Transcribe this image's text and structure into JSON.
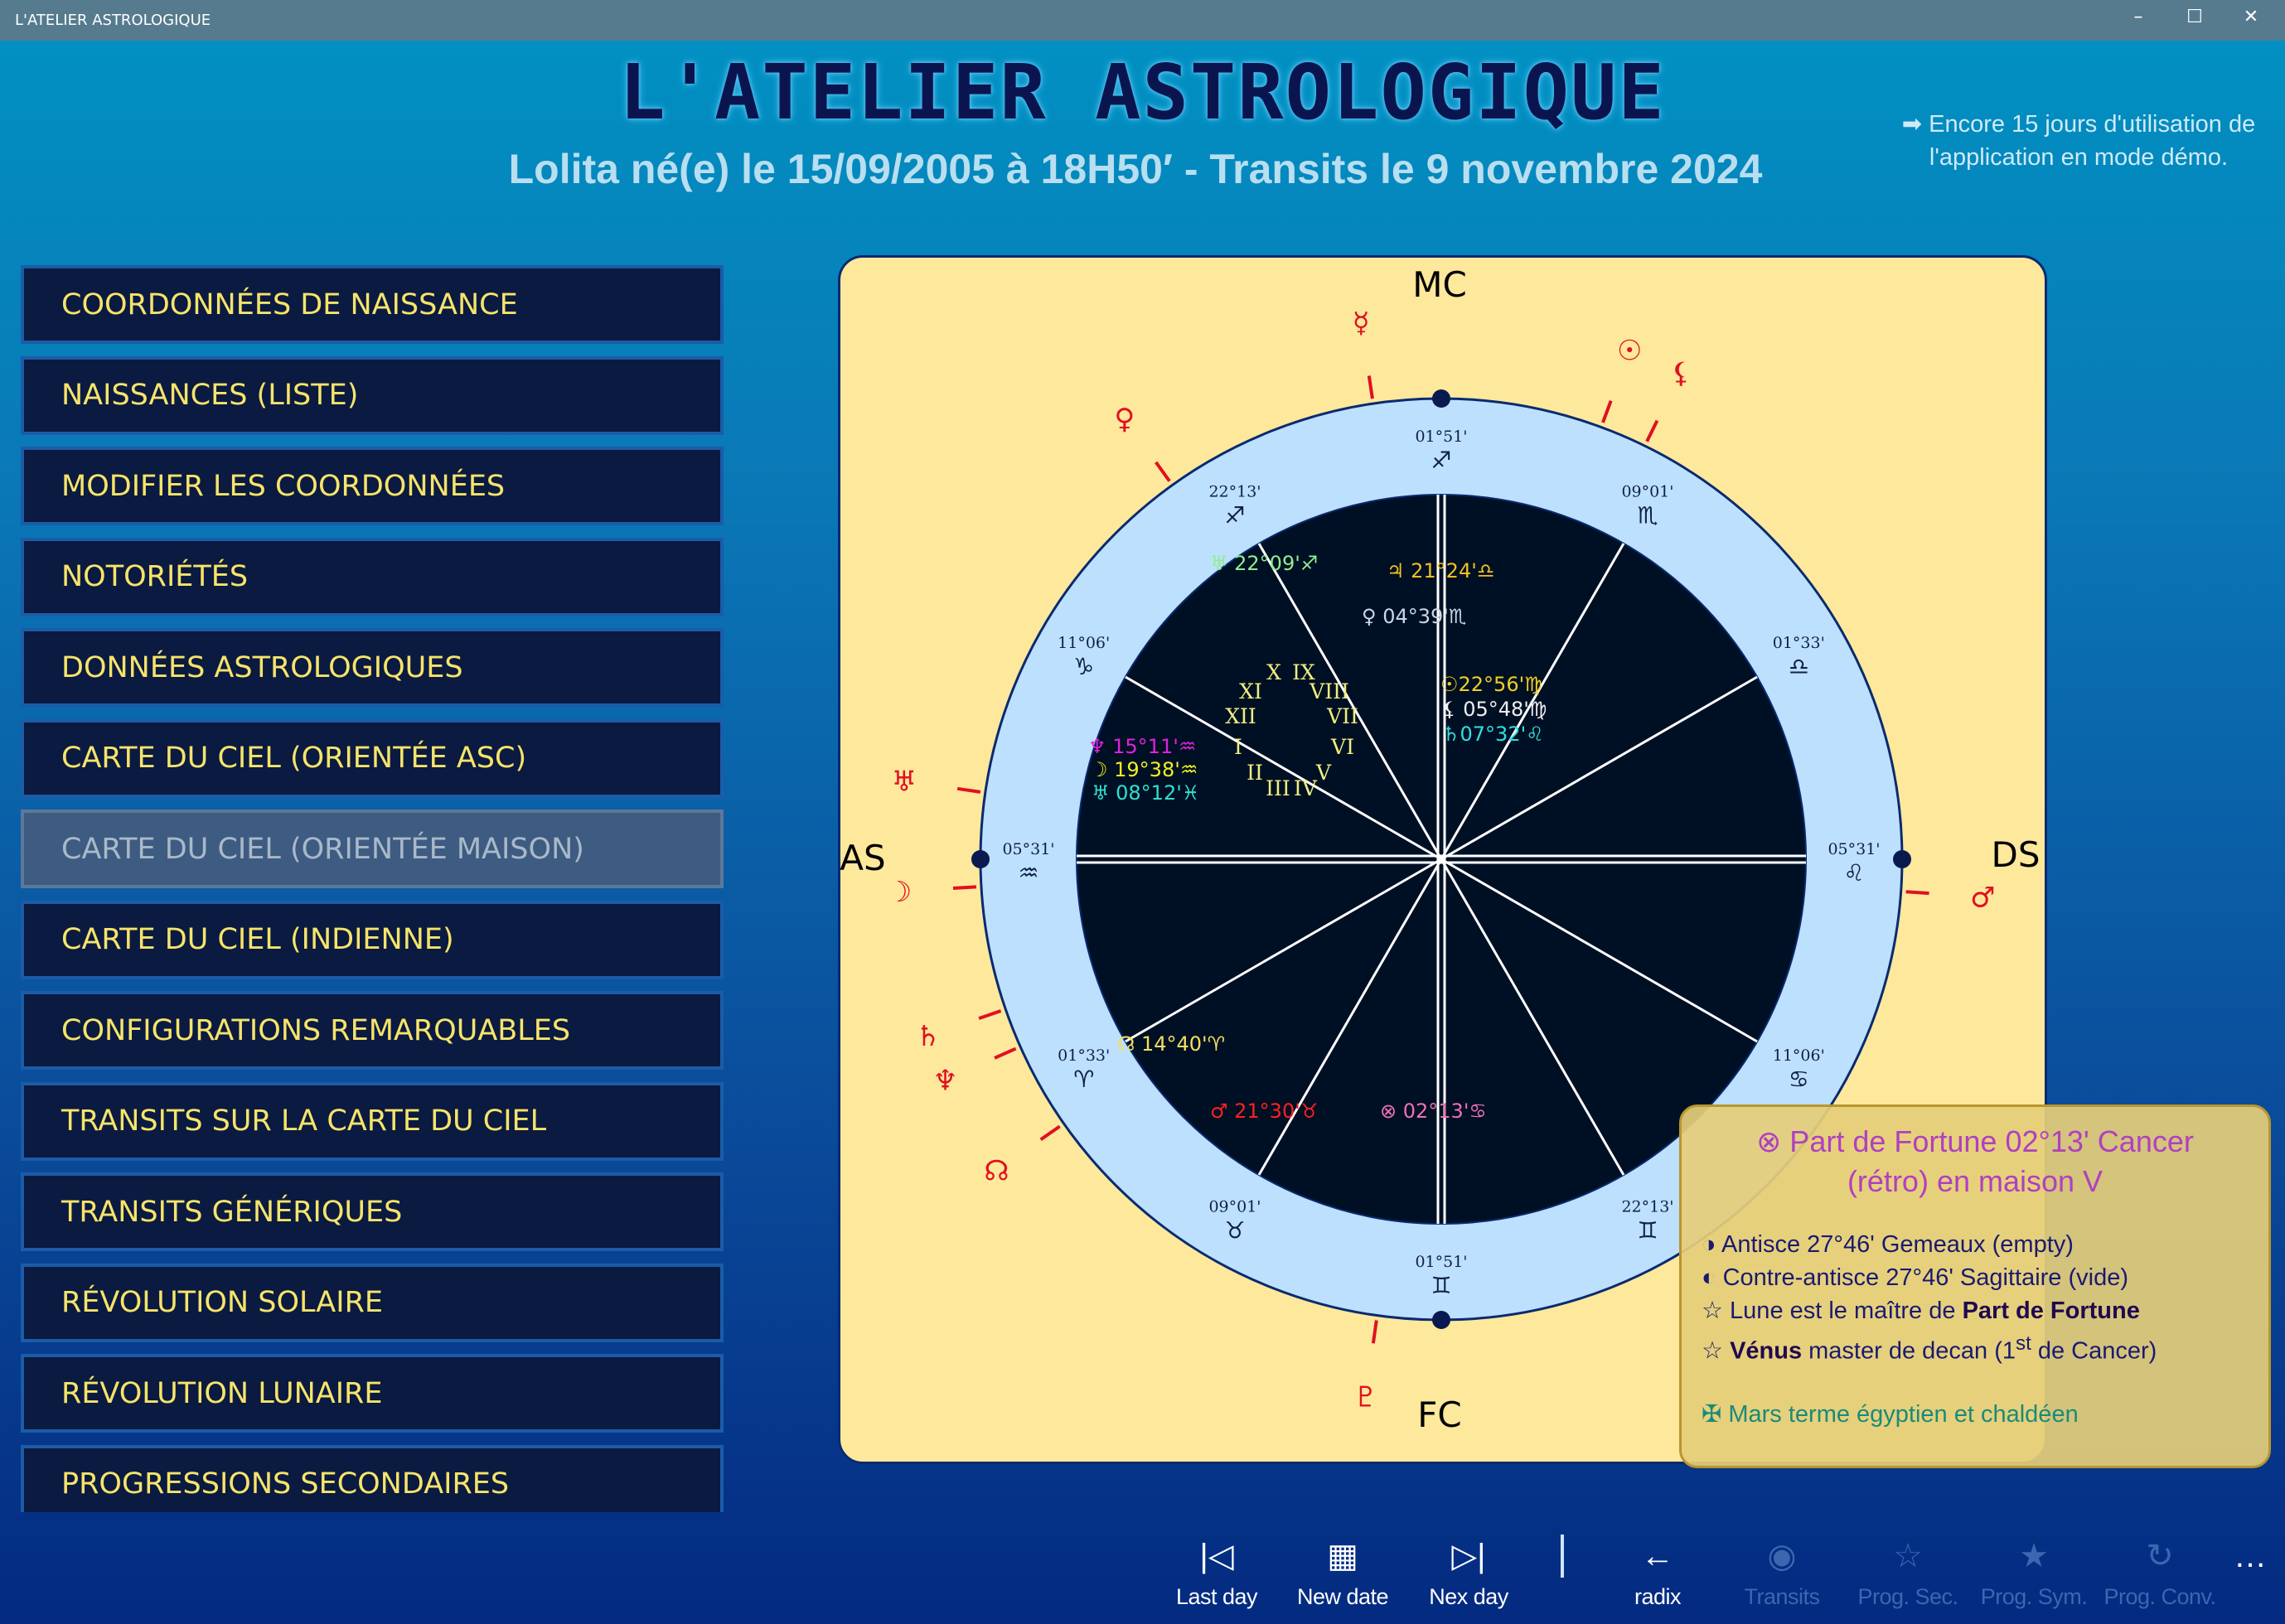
{
  "window": {
    "title": "L'ATELIER ASTROLOGIQUE",
    "minimize": "–",
    "maximize": "☐",
    "close": "✕"
  },
  "header": {
    "title": "L'ATELIER  ASTROLOGIQUE",
    "subtitle": "Lolita né(e) le 15/09/2005 à 18H50′ - Transits le 9 novembre 2024",
    "demo_note": "➡ Encore 15 jours d'utilisation de l'application en mode démo."
  },
  "menu": {
    "items": [
      {
        "label": "COORDONNÉES DE NAISSANCE"
      },
      {
        "label": "NAISSANCES (LISTE)"
      },
      {
        "label": "MODIFIER LES COORDONNÉES"
      },
      {
        "label": "NOTORIÉTÉS"
      },
      {
        "label": "DONNÉES ASTROLOGIQUES"
      },
      {
        "label": "CARTE DU CIEL (ORIENTÉE ASC)"
      },
      {
        "label": "CARTE DU CIEL (ORIENTÉE MAISON)",
        "selected": true
      },
      {
        "label": "CARTE DU CIEL (INDIENNE)"
      },
      {
        "label": "CONFIGURATIONS REMARQUABLES"
      },
      {
        "label": "TRANSITS SUR LA CARTE DU CIEL"
      },
      {
        "label": "TRANSITS GÉNÉRIQUES"
      },
      {
        "label": "RÉVOLUTION SOLAIRE"
      },
      {
        "label": "RÉVOLUTION LUNAIRE"
      },
      {
        "label": "PROGRESSIONS SECONDAIRES"
      }
    ]
  },
  "chart": {
    "angles": {
      "mc": "MC",
      "fc": "FC",
      "as": "AS",
      "ds": "DS"
    },
    "colors": {
      "panel": "#fde89c",
      "ring": "#bde0ff",
      "inner": "#001024",
      "ticks": "#e01020",
      "houses": "#f0ee80"
    },
    "cusps": [
      {
        "deg": "05°31'",
        "sign": "♒"
      },
      {
        "deg": "11°06'",
        "sign": "♑"
      },
      {
        "deg": "22°13'",
        "sign": "♐"
      },
      {
        "deg": "01°51'",
        "sign": "♐"
      },
      {
        "deg": "09°01'",
        "sign": "♏"
      },
      {
        "deg": "01°33'",
        "sign": "♎"
      },
      {
        "deg": "05°31'",
        "sign": "♌"
      },
      {
        "deg": "11°06'",
        "sign": "♋"
      },
      {
        "deg": "22°13'",
        "sign": "♊"
      },
      {
        "deg": "01°51'",
        "sign": "♊"
      },
      {
        "deg": "09°01'",
        "sign": "♉"
      },
      {
        "deg": "01°33'",
        "sign": "♈"
      }
    ],
    "houses": [
      "I",
      "II",
      "III",
      "IV",
      "V",
      "VI",
      "VII",
      "VIII",
      "IX",
      "X",
      "XI",
      "XII"
    ],
    "transit_glyphs": [
      "☿",
      "♀",
      "☉",
      "⚸",
      "♅",
      "☽",
      "♄",
      "♆",
      "☊",
      "♇",
      "♂"
    ],
    "natal_planets": [
      {
        "text": "♅ 22°09'♐",
        "color": "#90ee90"
      },
      {
        "text": "♃ 21°24'♎",
        "color": "#f0c020"
      },
      {
        "text": "♀ 04°39'♏",
        "color": "#c8d8e8"
      },
      {
        "text": "☉22°56'♍",
        "color": "#f0d020"
      },
      {
        "text": "⚸ 05°48'♍",
        "color": "#f0f0f0"
      },
      {
        "text": "♄07°32'♌",
        "color": "#30e0e0"
      },
      {
        "text": "♆ 15°11'♒",
        "color": "#e020e0"
      },
      {
        "text": "☽ 19°38'♒",
        "color": "#f0f020"
      },
      {
        "text": "♅ 08°12'♓",
        "color": "#30e0d0"
      },
      {
        "text": "☊ 14°40'♈",
        "color": "#f0e060"
      },
      {
        "text": "♂ 21°30'♉",
        "color": "#ff2020"
      },
      {
        "text": "⊗ 02°13'♋",
        "color": "#f070b0"
      }
    ]
  },
  "tooltip": {
    "title_line1": "⊗   Part de Fortune 02°13' Cancer",
    "title_line2": "(rétro) en maison V",
    "antisce": "◑ Antisce 27°46' Gemeaux (empty)",
    "contre_antisce": "◐ Contre-antisce 27°46' Sagittaire (vide)",
    "lune_prefix": "☆ Lune est le maître de ",
    "lune_bold": "Part de Fortune",
    "venus_bold": "Vénus",
    "venus_rest": " master de decan (1",
    "venus_sup": "st",
    "venus_end": " de Cancer)",
    "mars": "✠ Mars terme égyptien et chaldéen"
  },
  "toolbar": {
    "items": [
      {
        "icon": "|◁",
        "label": "Last day",
        "enabled": true
      },
      {
        "icon": "▦",
        "label": "New date",
        "enabled": true
      },
      {
        "icon": "▷|",
        "label": "Nex day",
        "enabled": true
      },
      {
        "icon": "←",
        "label": "radix",
        "enabled": true
      },
      {
        "icon": "◉",
        "label": "Transits",
        "enabled": false
      },
      {
        "icon": "☆",
        "label": "Prog. Sec.",
        "enabled": false
      },
      {
        "icon": "★",
        "label": "Prog. Sym.",
        "enabled": false
      },
      {
        "icon": "↻",
        "label": "Prog. Conv.",
        "enabled": false
      }
    ],
    "more": "…"
  }
}
